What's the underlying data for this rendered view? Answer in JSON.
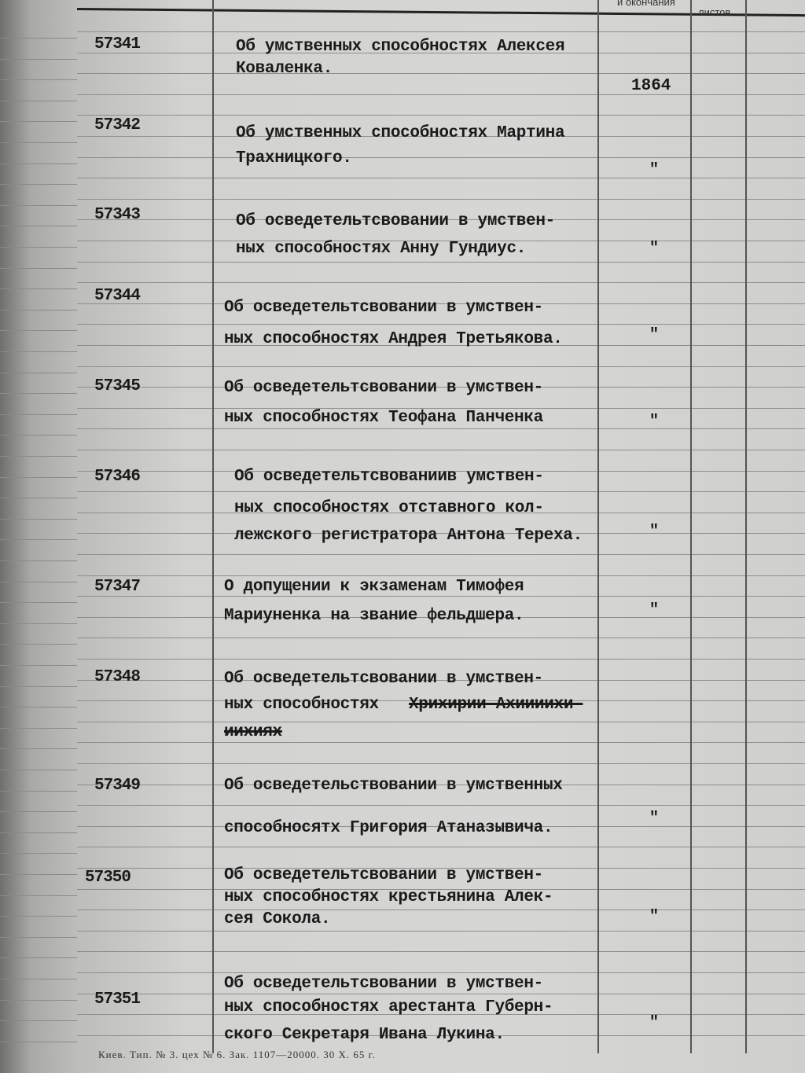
{
  "header": {
    "col_dates_label": "и окончания",
    "col_sheets_label": "листов"
  },
  "entries": [
    {
      "number": "57341",
      "lines": [
        "Об умственных способностях Алексея",
        "Коваленка."
      ],
      "date": "1864",
      "ditto": ""
    },
    {
      "number": "57342",
      "lines": [
        "Об умственных способностях Мартина",
        "Трахницкого."
      ],
      "date": "",
      "ditto": "\""
    },
    {
      "number": "57343",
      "lines": [
        "Об осведетельтсвовании в умствен-",
        "ных способностях Анну Гундиус."
      ],
      "date": "",
      "ditto": "\""
    },
    {
      "number": "57344",
      "lines": [
        "Об осведетельтсвовании в умствен-",
        "ных способностях Андрея Третьякова."
      ],
      "date": "",
      "ditto": "\""
    },
    {
      "number": "57345",
      "lines": [
        "Об осведетельтсвовании в умствен-",
        "ных способностях Теофана Панченка"
      ],
      "date": "",
      "ditto": "\""
    },
    {
      "number": "57346",
      "lines": [
        "Об осведетельтсвованиив умствен-",
        "ных способностях отставного кол-",
        "лежского регистратора Антона Тереха."
      ],
      "date": "",
      "ditto": "\""
    },
    {
      "number": "57347",
      "lines": [
        "О допущении к экзаменам Тимофея",
        "Мариуненка на звание фельдшера."
      ],
      "date": "",
      "ditto": "\""
    },
    {
      "number": "57348",
      "lines": [
        "Об осведетельтсвовании в умствен-",
        "ных способностях "
      ],
      "struck_lines": [
        "Хрихирии Ахиииихи-",
        "иихиях"
      ],
      "date": "",
      "ditto": ""
    },
    {
      "number": "57349",
      "lines": [
        "Об осведетельствовании в умственных",
        "способносятх Григория Атаназывича."
      ],
      "date": "",
      "ditto": "\""
    },
    {
      "number": "57350",
      "lines": [
        "Об осведетельтсвовании в умствен-",
        "ных способностях крестьянина Алек-",
        "сея Сокола."
      ],
      "date": "",
      "ditto": "\""
    },
    {
      "number": "57351",
      "lines": [
        "Об осведетельтсвовании в умствен-",
        "ных способностях арестанта Губерн-",
        "ского Секретаря Ивана Лукина."
      ],
      "date": "",
      "ditto": "\""
    }
  ],
  "footer": "Киев. Тип. № 3. цех № 6. Зак. 1107—20000. 30 X. 65 г."
}
